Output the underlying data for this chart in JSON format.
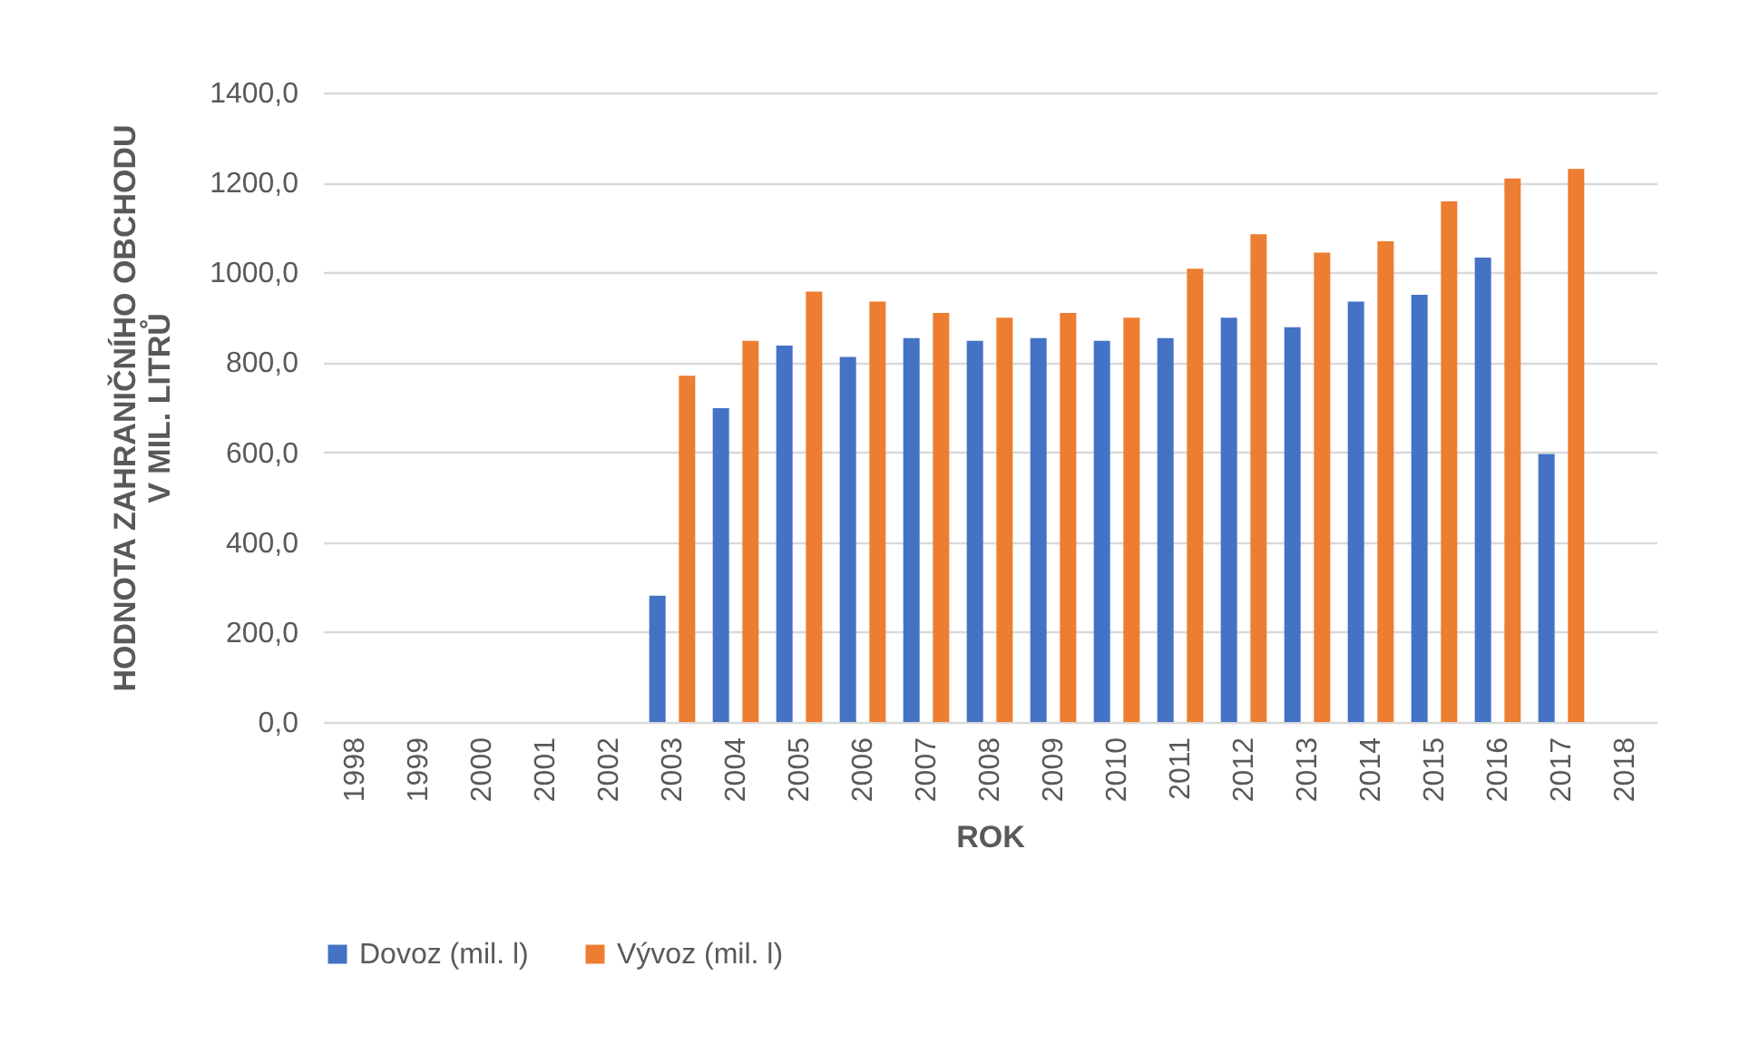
{
  "chart_data": {
    "type": "bar",
    "xlabel": "ROK",
    "ylabel": "HODNOTA ZAHRANIČNÍHO OBCHODU\nV MIL. LITRŮ",
    "categories": [
      "1998",
      "1999",
      "2000",
      "2001",
      "2002",
      "2003",
      "2004",
      "2005",
      "2006",
      "2007",
      "2008",
      "2009",
      "2010",
      "2011",
      "2012",
      "2013",
      "2014",
      "2015",
      "2016",
      "2017",
      "2018"
    ],
    "series": [
      {
        "name": "Dovoz (mil. l)",
        "color": "#4472c4",
        "values": [
          null,
          null,
          null,
          null,
          null,
          281,
          698,
          837,
          812,
          854,
          848,
          854,
          848,
          854,
          899,
          878,
          935,
          950,
          1033,
          596,
          null
        ]
      },
      {
        "name": "Vývoz (mil. l)",
        "color": "#ed7d31",
        "values": [
          null,
          null,
          null,
          null,
          null,
          770,
          848,
          957,
          935,
          910,
          899,
          910,
          899,
          1008,
          1085,
          1044,
          1069,
          1158,
          1209,
          1230,
          null
        ]
      }
    ],
    "ylim": [
      0,
      1400
    ],
    "yticks": [
      {
        "value": 0,
        "label": "0,0"
      },
      {
        "value": 200,
        "label": "200,0"
      },
      {
        "value": 400,
        "label": "400,0"
      },
      {
        "value": 600,
        "label": "600,0"
      },
      {
        "value": 800,
        "label": "800,0"
      },
      {
        "value": 1000,
        "label": "1000,0"
      },
      {
        "value": 1200,
        "label": "1200,0"
      },
      {
        "value": 1400,
        "label": "1400,0"
      }
    ],
    "grid": "y",
    "legend": "bottom"
  }
}
